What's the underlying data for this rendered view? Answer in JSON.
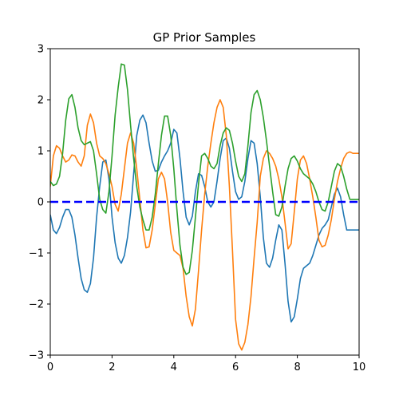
{
  "chart_data": {
    "type": "line",
    "title": "GP Prior Samples",
    "xlabel": "",
    "ylabel": "",
    "xlim": [
      0,
      10
    ],
    "ylim": [
      -3,
      3
    ],
    "xticks": [
      0,
      2,
      4,
      6,
      8,
      10
    ],
    "yticks": [
      -3,
      -2,
      -1,
      0,
      1,
      2,
      3
    ],
    "grid": false,
    "mean_line": {
      "y": 0,
      "color": "#0000ff",
      "style": "dashed"
    },
    "series": [
      {
        "color": "#1f77b4",
        "x": [
          0,
          0.1,
          0.2,
          0.3,
          0.4,
          0.5,
          0.6,
          0.7,
          0.8,
          0.9,
          1.0,
          1.1,
          1.2,
          1.3,
          1.4,
          1.5,
          1.6,
          1.7,
          1.8,
          1.9,
          2.0,
          2.1,
          2.2,
          2.3,
          2.4,
          2.5,
          2.6,
          2.7,
          2.8,
          2.9,
          3.0,
          3.1,
          3.2,
          3.3,
          3.4,
          3.5,
          3.6,
          3.7,
          3.8,
          3.9,
          4.0,
          4.1,
          4.2,
          4.3,
          4.4,
          4.5,
          4.6,
          4.7,
          4.8,
          4.9,
          5.0,
          5.1,
          5.2,
          5.3,
          5.4,
          5.5,
          5.6,
          5.7,
          5.8,
          5.9,
          6.0,
          6.1,
          6.2,
          6.3,
          6.4,
          6.5,
          6.6,
          6.7,
          6.8,
          6.9,
          7.0,
          7.1,
          7.2,
          7.3,
          7.4,
          7.5,
          7.6,
          7.7,
          7.8,
          7.9,
          8.0,
          8.1,
          8.2,
          8.3,
          8.4,
          8.5,
          8.6,
          8.7,
          8.8,
          8.9,
          9.0,
          9.1,
          9.2,
          9.3,
          9.4,
          9.5,
          9.6,
          9.7,
          9.8,
          9.9,
          10.0
        ],
        "y": [
          -0.25,
          -0.55,
          -0.62,
          -0.5,
          -0.3,
          -0.15,
          -0.15,
          -0.3,
          -0.65,
          -1.1,
          -1.5,
          -1.72,
          -1.77,
          -1.6,
          -1.1,
          -0.3,
          0.3,
          0.78,
          0.82,
          0.45,
          -0.3,
          -0.8,
          -1.1,
          -1.2,
          -1.05,
          -0.7,
          -0.2,
          0.55,
          1.3,
          1.6,
          1.7,
          1.55,
          1.15,
          0.8,
          0.6,
          0.62,
          0.78,
          0.9,
          1.0,
          1.15,
          1.42,
          1.35,
          0.85,
          0.2,
          -0.3,
          -0.45,
          -0.28,
          0.2,
          0.55,
          0.52,
          0.3,
          0.0,
          -0.1,
          0.0,
          0.4,
          0.85,
          1.2,
          1.25,
          1.05,
          0.6,
          0.2,
          0.05,
          0.1,
          0.4,
          0.85,
          1.2,
          1.15,
          0.75,
          0.1,
          -0.7,
          -1.2,
          -1.28,
          -1.1,
          -0.75,
          -0.45,
          -0.55,
          -1.2,
          -1.95,
          -2.35,
          -2.25,
          -1.9,
          -1.5,
          -1.3,
          -1.25,
          -1.2,
          -1.05,
          -0.85,
          -0.65,
          -0.52,
          -0.45,
          -0.35,
          -0.1,
          0.15,
          0.27,
          0.1,
          -0.25,
          -0.55,
          -0.55,
          -0.55,
          -0.55,
          -0.55
        ]
      },
      {
        "color": "#ff7f0e",
        "x": [
          0,
          0.1,
          0.2,
          0.3,
          0.4,
          0.5,
          0.6,
          0.7,
          0.8,
          0.9,
          1.0,
          1.1,
          1.2,
          1.3,
          1.4,
          1.5,
          1.6,
          1.7,
          1.8,
          1.9,
          2.0,
          2.1,
          2.2,
          2.3,
          2.4,
          2.5,
          2.6,
          2.7,
          2.8,
          2.9,
          3.0,
          3.1,
          3.2,
          3.3,
          3.4,
          3.5,
          3.6,
          3.7,
          3.8,
          3.9,
          4.0,
          4.1,
          4.2,
          4.3,
          4.4,
          4.5,
          4.6,
          4.7,
          4.8,
          4.9,
          5.0,
          5.1,
          5.2,
          5.3,
          5.4,
          5.5,
          5.6,
          5.7,
          5.8,
          5.9,
          6.0,
          6.1,
          6.2,
          6.3,
          6.4,
          6.5,
          6.6,
          6.7,
          6.8,
          6.9,
          7.0,
          7.1,
          7.2,
          7.3,
          7.4,
          7.5,
          7.6,
          7.7,
          7.8,
          7.9,
          8.0,
          8.1,
          8.2,
          8.3,
          8.4,
          8.5,
          8.6,
          8.7,
          8.8,
          8.9,
          9.0,
          9.1,
          9.2,
          9.3,
          9.4,
          9.5,
          9.6,
          9.7,
          9.8,
          9.9,
          10.0
        ],
        "y": [
          0.3,
          0.9,
          1.1,
          1.05,
          0.9,
          0.78,
          0.82,
          0.92,
          0.9,
          0.78,
          0.7,
          0.9,
          1.5,
          1.72,
          1.55,
          1.15,
          0.9,
          0.85,
          0.75,
          0.55,
          0.3,
          -0.05,
          -0.18,
          0.15,
          0.65,
          1.15,
          1.35,
          1.15,
          0.65,
          0.05,
          -0.55,
          -0.9,
          -0.88,
          -0.55,
          -0.05,
          0.45,
          0.58,
          0.45,
          0.0,
          -0.6,
          -0.95,
          -1.0,
          -1.05,
          -1.3,
          -1.85,
          -2.25,
          -2.43,
          -2.1,
          -1.35,
          -0.55,
          0.15,
          0.7,
          1.15,
          1.55,
          1.85,
          2.0,
          1.85,
          1.3,
          0.3,
          -0.95,
          -2.3,
          -2.78,
          -2.9,
          -2.75,
          -2.4,
          -1.85,
          -1.1,
          -0.4,
          0.5,
          0.85,
          1.0,
          0.95,
          0.85,
          0.7,
          0.45,
          0.1,
          -0.4,
          -0.92,
          -0.82,
          -0.2,
          0.45,
          0.82,
          0.9,
          0.75,
          0.45,
          0.1,
          -0.3,
          -0.75,
          -0.88,
          -0.85,
          -0.65,
          -0.35,
          0.05,
          0.4,
          0.65,
          0.85,
          0.95,
          0.98,
          0.95,
          0.95,
          0.95
        ]
      },
      {
        "color": "#2ca02c",
        "x": [
          0,
          0.1,
          0.2,
          0.3,
          0.4,
          0.5,
          0.6,
          0.7,
          0.8,
          0.9,
          1.0,
          1.1,
          1.2,
          1.3,
          1.4,
          1.5,
          1.6,
          1.7,
          1.8,
          1.9,
          2.0,
          2.1,
          2.2,
          2.3,
          2.4,
          2.5,
          2.6,
          2.7,
          2.8,
          2.9,
          3.0,
          3.1,
          3.2,
          3.3,
          3.4,
          3.5,
          3.6,
          3.7,
          3.8,
          3.9,
          4.0,
          4.1,
          4.2,
          4.3,
          4.4,
          4.5,
          4.6,
          4.7,
          4.8,
          4.9,
          5.0,
          5.1,
          5.2,
          5.3,
          5.4,
          5.5,
          5.6,
          5.7,
          5.8,
          5.9,
          6.0,
          6.1,
          6.2,
          6.3,
          6.4,
          6.5,
          6.6,
          6.7,
          6.8,
          6.9,
          7.0,
          7.1,
          7.2,
          7.3,
          7.4,
          7.5,
          7.6,
          7.7,
          7.8,
          7.9,
          8.0,
          8.1,
          8.2,
          8.3,
          8.4,
          8.5,
          8.6,
          8.7,
          8.8,
          8.9,
          9.0,
          9.1,
          9.2,
          9.3,
          9.4,
          9.5,
          9.6,
          9.7,
          9.8,
          9.9,
          10.0
        ],
        "y": [
          0.4,
          0.32,
          0.35,
          0.5,
          0.95,
          1.6,
          2.02,
          2.1,
          1.85,
          1.45,
          1.2,
          1.12,
          1.15,
          1.18,
          1.0,
          0.55,
          0.05,
          -0.15,
          -0.22,
          0.2,
          0.9,
          1.7,
          2.25,
          2.7,
          2.68,
          2.2,
          1.5,
          0.85,
          0.3,
          -0.1,
          -0.35,
          -0.55,
          -0.55,
          -0.3,
          0.15,
          0.75,
          1.3,
          1.68,
          1.68,
          1.3,
          0.65,
          -0.15,
          -0.85,
          -1.28,
          -1.42,
          -1.38,
          -0.95,
          -0.3,
          0.35,
          0.9,
          0.95,
          0.85,
          0.7,
          0.65,
          0.75,
          1.1,
          1.35,
          1.45,
          1.4,
          1.15,
          0.8,
          0.5,
          0.4,
          0.55,
          1.1,
          1.75,
          2.1,
          2.18,
          2.0,
          1.65,
          1.2,
          0.7,
          0.2,
          -0.25,
          -0.28,
          -0.1,
          0.3,
          0.65,
          0.85,
          0.9,
          0.8,
          0.65,
          0.55,
          0.5,
          0.45,
          0.35,
          0.2,
          0.0,
          -0.15,
          -0.18,
          0.0,
          0.3,
          0.6,
          0.75,
          0.7,
          0.5,
          0.25,
          0.05,
          0.05,
          0.05,
          0.05
        ]
      }
    ]
  }
}
